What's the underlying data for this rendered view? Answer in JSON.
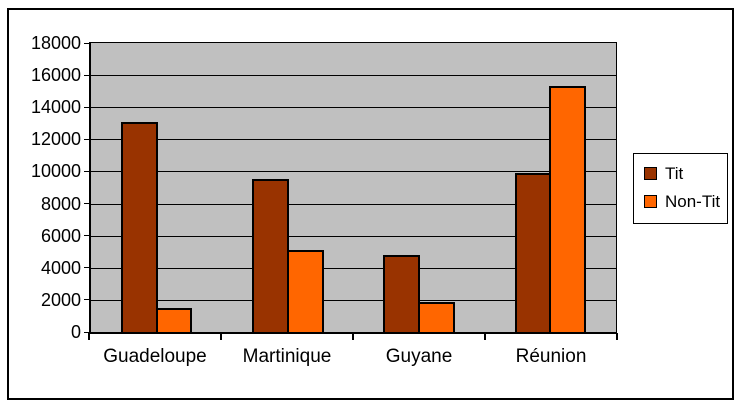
{
  "chart_data": {
    "type": "bar",
    "title": "",
    "categories": [
      "Guadeloupe",
      "Martinique",
      "Guyane",
      "Réunion"
    ],
    "series": [
      {
        "name": "Tit",
        "color": "#993300",
        "values": [
          13100,
          9500,
          4800,
          9900
        ]
      },
      {
        "name": "Non-Tit",
        "color": "#FF6600",
        "values": [
          1500,
          5100,
          1900,
          15300
        ]
      }
    ],
    "ylim": [
      0,
      18000
    ],
    "ytick_step": 2000,
    "ytick_labels": [
      "0",
      "2000",
      "4000",
      "6000",
      "8000",
      "10000",
      "12000",
      "14000",
      "16000",
      "18000"
    ],
    "grid": "horizontal",
    "plot_background": "#C0C0C0",
    "frame_border_color": "#000000",
    "legend_position": "right"
  }
}
